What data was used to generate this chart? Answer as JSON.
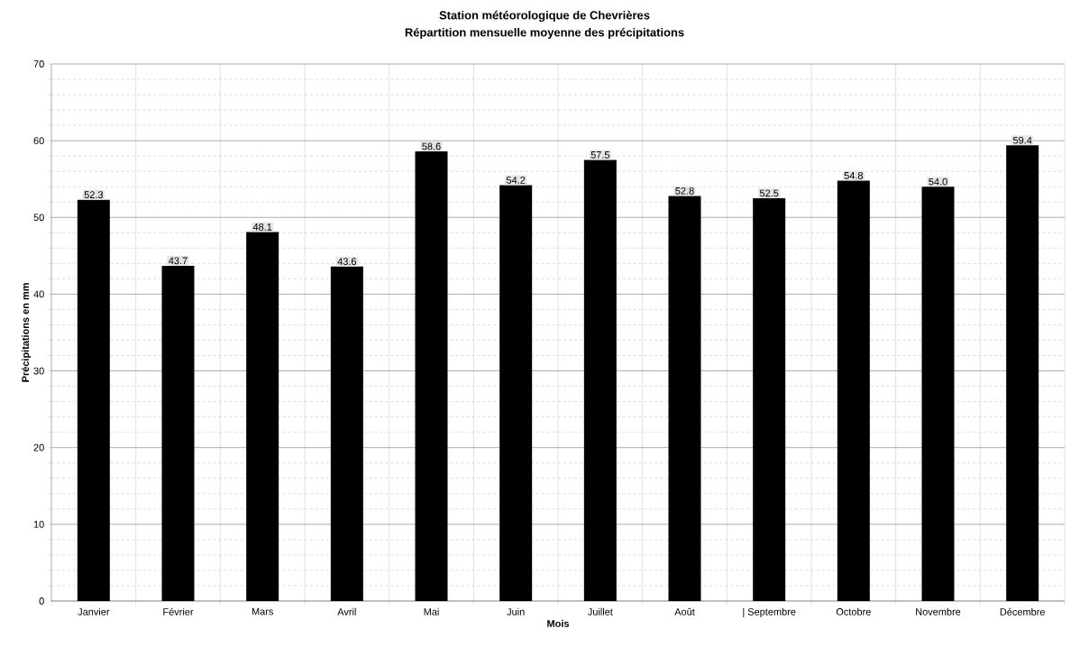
{
  "chart_data": {
    "type": "bar",
    "title": "Station météorologique de Chevrières",
    "subtitle": "Répartition mensuelle moyenne des précipitations",
    "xlabel": "Mois",
    "ylabel": "Précipitations en mm",
    "categories": [
      "Janvier",
      "Février",
      "Mars",
      "Avril",
      "Mai",
      "Juin",
      "Juillet",
      "Août",
      "| Septembre",
      "Octobre",
      "Novembre",
      "Décembre"
    ],
    "values": [
      52.3,
      43.7,
      48.1,
      43.6,
      58.6,
      54.2,
      57.5,
      52.8,
      52.5,
      54.8,
      54.0,
      59.4
    ],
    "value_labels": [
      "52.3",
      "43.7",
      "48.1",
      "43.6",
      "58.6",
      "54.2",
      "57.5",
      "52.8",
      "52.5",
      "54.8",
      "54.0",
      "59.4"
    ],
    "color": "#000000",
    "ylim": [
      0,
      70
    ],
    "yticks": [
      0,
      10,
      20,
      30,
      40,
      50,
      60,
      70
    ],
    "grid": true
  }
}
